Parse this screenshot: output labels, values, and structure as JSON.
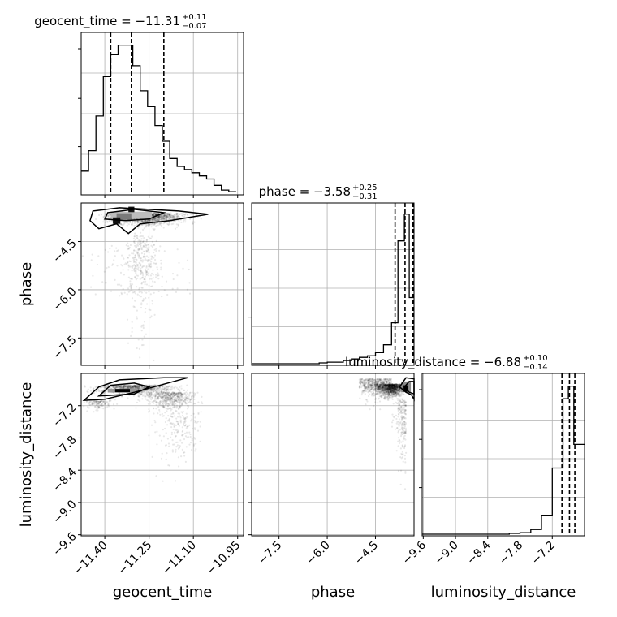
{
  "chart_data": {
    "type": "corner",
    "parameters": [
      "geocent_time",
      "phase",
      "luminosity_distance"
    ],
    "axis_labels": {
      "geocent_time": "geocent_time",
      "phase": "phase",
      "luminosity_distance": "luminosity_distance"
    },
    "titles": [
      {
        "param": "geocent_time",
        "label": "geocent_time = −11.31",
        "plus": "+0.11",
        "minus": "−0.07"
      },
      {
        "param": "phase",
        "label": "phase = −3.58",
        "plus": "+0.25",
        "minus": "−0.31"
      },
      {
        "param": "luminosity_distance",
        "label": "luminosity_distance = −6.88",
        "plus": "+0.10",
        "minus": "−0.14"
      }
    ],
    "ranges": {
      "geocent_time": [
        -11.48,
        -10.93
      ],
      "phase": [
        -8.35,
        -3.3
      ],
      "luminosity_distance": [
        -9.62,
        -6.6
      ]
    },
    "ticks": {
      "geocent_time": [
        -11.4,
        -11.25,
        -11.1,
        -10.95
      ],
      "phase": [
        -7.5,
        -6.0,
        -4.5
      ],
      "luminosity_distance": [
        -9.6,
        -9.0,
        -8.4,
        -7.8,
        -7.2
      ]
    },
    "tick_labels": {
      "geocent_time": [
        "−11.40",
        "−11.25",
        "−11.10",
        "−10.95"
      ],
      "phase": [
        "−7.5",
        "−6.0",
        "−4.5"
      ],
      "luminosity_distance": [
        "−9.6",
        "−9.0",
        "−8.4",
        "−7.8",
        "−7.2"
      ]
    },
    "quantiles": {
      "geocent_time": [
        -11.38,
        -11.31,
        -11.2
      ],
      "phase": [
        -3.89,
        -3.58,
        -3.33
      ],
      "luminosity_distance": [
        -7.02,
        -6.88,
        -6.78
      ]
    },
    "histograms": {
      "geocent_time": {
        "edges": [
          -11.48,
          -11.455,
          -11.43,
          -11.405,
          -11.38,
          -11.355,
          -11.33,
          -11.305,
          -11.28,
          -11.255,
          -11.23,
          -11.205,
          -11.18,
          -11.155,
          -11.13,
          -11.105,
          -11.08,
          -11.055,
          -11.03,
          -11.005,
          -10.98,
          -10.955
        ],
        "counts": [
          0.14,
          0.27,
          0.49,
          0.74,
          0.88,
          0.94,
          0.94,
          0.81,
          0.65,
          0.55,
          0.43,
          0.33,
          0.22,
          0.17,
          0.15,
          0.13,
          0.11,
          0.09,
          0.05,
          0.02,
          0.01
        ]
      },
      "phase": {
        "edges": [
          -8.35,
          -8.0,
          -7.75,
          -7.5,
          -7.25,
          -7.0,
          -6.75,
          -6.5,
          -6.25,
          -6.0,
          -5.75,
          -5.5,
          -5.25,
          -5.0,
          -4.75,
          -4.5,
          -4.25,
          -4.0,
          -3.8,
          -3.6,
          -3.45,
          -3.3
        ],
        "counts": [
          0,
          0,
          0,
          0,
          0,
          0,
          0,
          0,
          0.005,
          0.01,
          0.01,
          0.02,
          0.03,
          0.04,
          0.05,
          0.07,
          0.12,
          0.26,
          0.78,
          0.95,
          0.42
        ]
      },
      "luminosity_distance": {
        "edges": [
          -9.62,
          -8.0,
          -7.8,
          -7.6,
          -7.4,
          -7.2,
          -7.0,
          -6.9,
          -6.8,
          -6.7,
          -6.6
        ],
        "counts": [
          0,
          0.005,
          0.01,
          0.03,
          0.12,
          0.42,
          0.86,
          0.94,
          0.57,
          0.57
        ]
      }
    },
    "grid": true
  }
}
